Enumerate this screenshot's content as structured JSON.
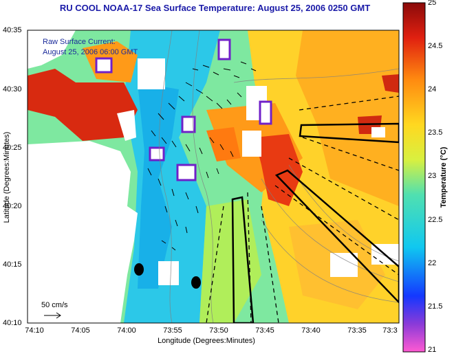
{
  "title": "RU COOL  NOAA-17  Sea Surface Temperature:  August 25, 2006 0250 GMT",
  "annotations": {
    "line1": "Raw Surface Current:",
    "line2": "August 25, 2006 06:00 GMT",
    "scale": "50 cm/s"
  },
  "axes": {
    "ylabel": "Latitude (Degrees:Minutes)",
    "xlabel": "Longitude (Degrees:Minutes)",
    "yticks": [
      "40:35",
      "40:30",
      "40:25",
      "40:20",
      "40:15",
      "40:10"
    ],
    "xticks": [
      "74:10",
      "74:05",
      "74:00",
      "73:55",
      "73:50",
      "73:45",
      "73:40",
      "73:35",
      "73:3"
    ]
  },
  "colorbar": {
    "title": "Temperature (°C)",
    "ticks": [
      "25",
      "24.5",
      "24",
      "23.5",
      "23",
      "22.5",
      "22",
      "21.5",
      "21"
    ],
    "range": [
      21,
      25
    ]
  },
  "colors": {
    "title": "#1a1aa8",
    "annotation": "#1a2a9a"
  }
}
